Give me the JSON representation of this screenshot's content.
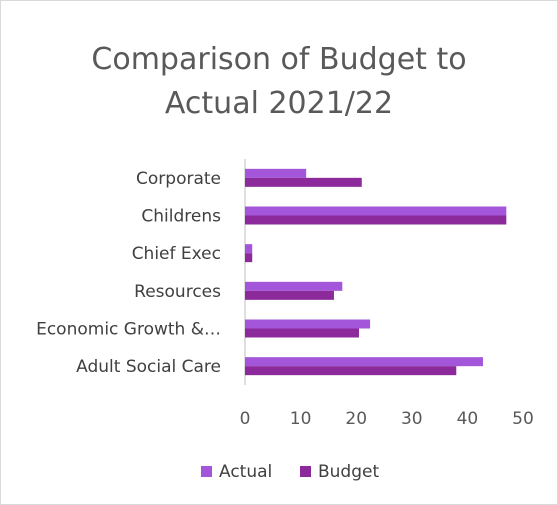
{
  "chart_data": {
    "type": "bar",
    "orientation": "horizontal",
    "title_lines": [
      "Comparison of Budget to",
      "Actual 2021/22"
    ],
    "categories": [
      "Corporate",
      "Childrens",
      "Chief Exec",
      "Resources",
      "Economic Growth &…",
      "Adult Social Care"
    ],
    "series": [
      {
        "name": "Actual",
        "color": "#a356d9",
        "values": [
          11,
          47,
          1.3,
          17.5,
          22.5,
          42.8
        ]
      },
      {
        "name": "Budget",
        "color": "#8c2a9c",
        "values": [
          21,
          47,
          1.3,
          16,
          20.5,
          38
        ]
      }
    ],
    "xlim": [
      0,
      50
    ],
    "xticks": [
      0,
      10,
      20,
      30,
      40,
      50
    ],
    "grid": false,
    "legend_position": "bottom"
  }
}
